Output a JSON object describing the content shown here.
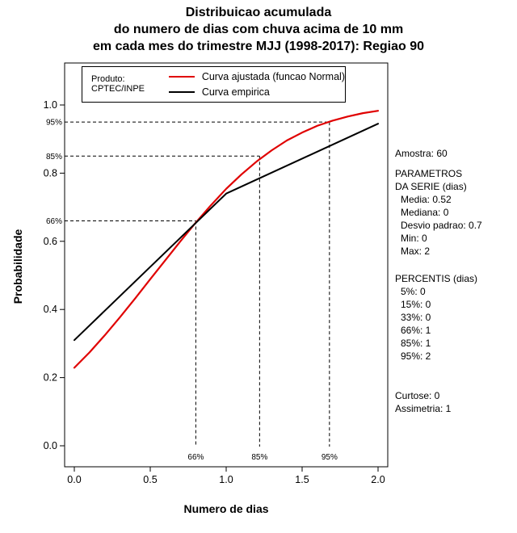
{
  "chart_data": {
    "type": "line",
    "title_lines": [
      "Distribuicao acumulada",
      "do numero de dias com chuva acima de 10 mm",
      "em cada mes do trimestre MJJ (1998-2017): Regiao 90"
    ],
    "xlabel": "Numero de dias",
    "ylabel": "Probabilidade",
    "xlim": [
      0,
      2
    ],
    "ylim": [
      0,
      1
    ],
    "x_ticks": [
      "0.0",
      "0.5",
      "1.0",
      "1.5",
      "2.0"
    ],
    "y_ticks": [
      "0.0",
      "0.2",
      "0.4",
      "0.6",
      "0.8",
      "1.0"
    ],
    "grid": false,
    "legend_position": "top-inside",
    "product_label": "Produto: CPTEC/INPE",
    "series": [
      {
        "id": "fitted",
        "name": "Curva ajustada (funcao Normal)",
        "color": "#e00000",
        "width": 2.2,
        "x": [
          0.0,
          0.1,
          0.2,
          0.3,
          0.4,
          0.5,
          0.6,
          0.7,
          0.8,
          0.9,
          1.0,
          1.1,
          1.2,
          1.3,
          1.4,
          1.5,
          1.6,
          1.7,
          1.8,
          1.9,
          2.0
        ],
        "y": [
          0.229,
          0.274,
          0.324,
          0.377,
          0.432,
          0.489,
          0.545,
          0.601,
          0.655,
          0.706,
          0.754,
          0.796,
          0.834,
          0.867,
          0.896,
          0.919,
          0.939,
          0.954,
          0.966,
          0.976,
          0.983
        ]
      },
      {
        "id": "empirical",
        "name": "Curva empirica",
        "color": "#000000",
        "width": 2,
        "x": [
          0.0,
          1.0,
          2.0
        ],
        "y": [
          0.31,
          0.74,
          0.945
        ]
      }
    ],
    "guides": [
      {
        "label": "66%",
        "y": 0.66,
        "x": 0.8
      },
      {
        "label": "85%",
        "y": 0.85,
        "x": 1.22
      },
      {
        "label": "95%",
        "y": 0.95,
        "x": 1.68
      }
    ]
  },
  "side_panel": {
    "sample": "Amostra: 60",
    "params_header1": "PARAMETROS",
    "params_header2": "DA SERIE (dias)",
    "params": [
      "Media: 0.52",
      "Mediana: 0",
      "Desvio padrao: 0.7",
      "Min: 0",
      "Max: 2"
    ],
    "percentis_header": "PERCENTIS (dias)",
    "percentis": [
      "5%: 0",
      "15%: 0",
      "33%: 0",
      "66%: 1",
      "85%: 1",
      "95%: 2"
    ],
    "extra": [
      "Curtose: 0",
      "Assimetria: 1"
    ]
  }
}
